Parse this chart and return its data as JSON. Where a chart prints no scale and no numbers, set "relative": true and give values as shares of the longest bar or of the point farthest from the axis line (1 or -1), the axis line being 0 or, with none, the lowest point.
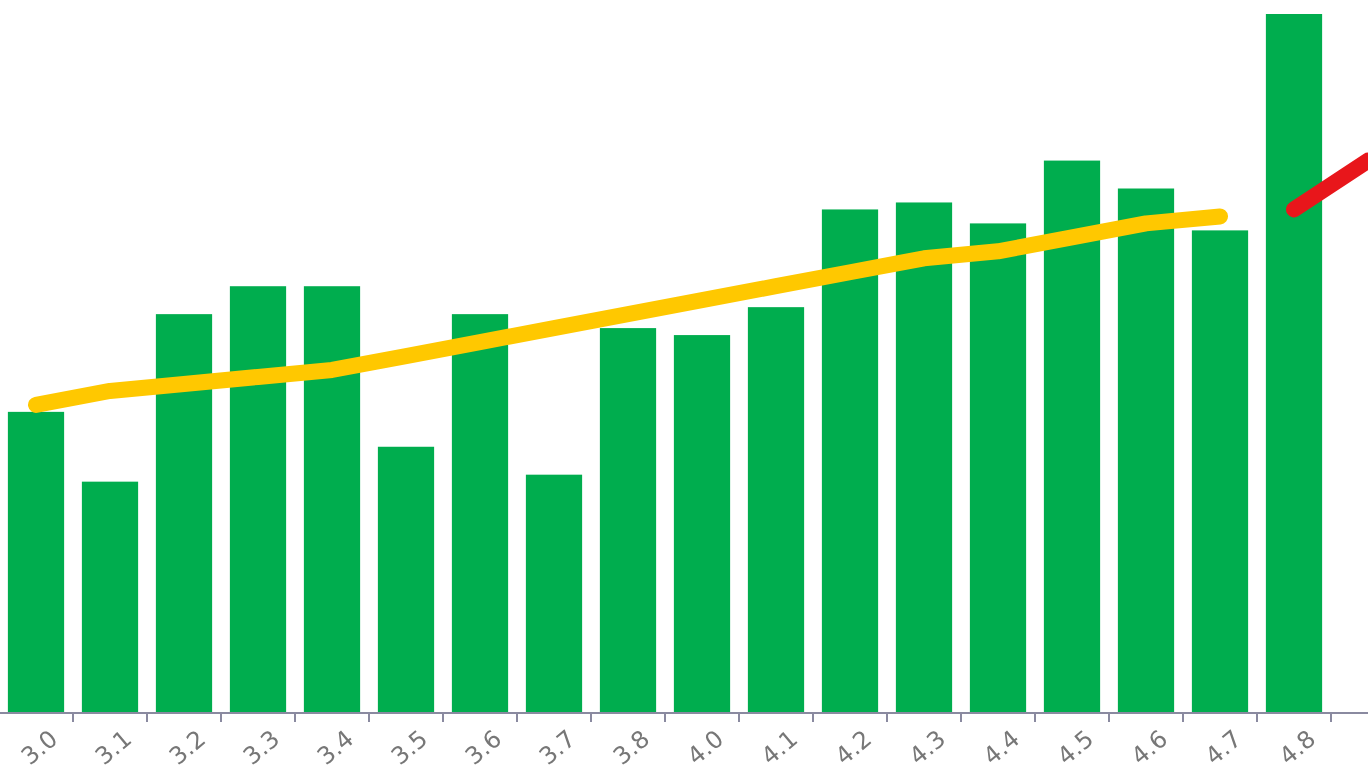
{
  "chart_data": {
    "type": "bar",
    "relative": true,
    "categories": [
      "3.0",
      "3.1",
      "3.2",
      "3.3",
      "3.4",
      "3.5",
      "3.6",
      "3.7",
      "3.8",
      "4.0",
      "4.1",
      "4.2",
      "4.3",
      "4.4",
      "4.5",
      "4.6",
      "4.7",
      "4.8",
      null
    ],
    "series": [
      {
        "color": "#00ad4e",
        "values": [
          0.43,
          0.33,
          0.57,
          0.61,
          0.61,
          0.38,
          0.57,
          0.34,
          0.55,
          0.54,
          0.58,
          0.72,
          0.73,
          0.7,
          0.79,
          0.75,
          0.69,
          1,
          null
        ]
      },
      {
        "type": "line",
        "color": "#ffc800",
        "values": [
          0.44,
          0.46,
          0.47,
          0.48,
          0.49,
          0.51,
          0.53,
          0.55,
          0.57,
          0.59,
          0.61,
          0.63,
          0.65,
          0.66,
          0.68,
          0.7,
          0.71,
          null,
          null
        ]
      },
      {
        "type": "line",
        "color": "#e8161b",
        "values": [
          null,
          null,
          null,
          null,
          null,
          null,
          null,
          null,
          null,
          null,
          null,
          null,
          null,
          null,
          null,
          null,
          null,
          0.72,
          0.79
        ]
      }
    ]
  }
}
